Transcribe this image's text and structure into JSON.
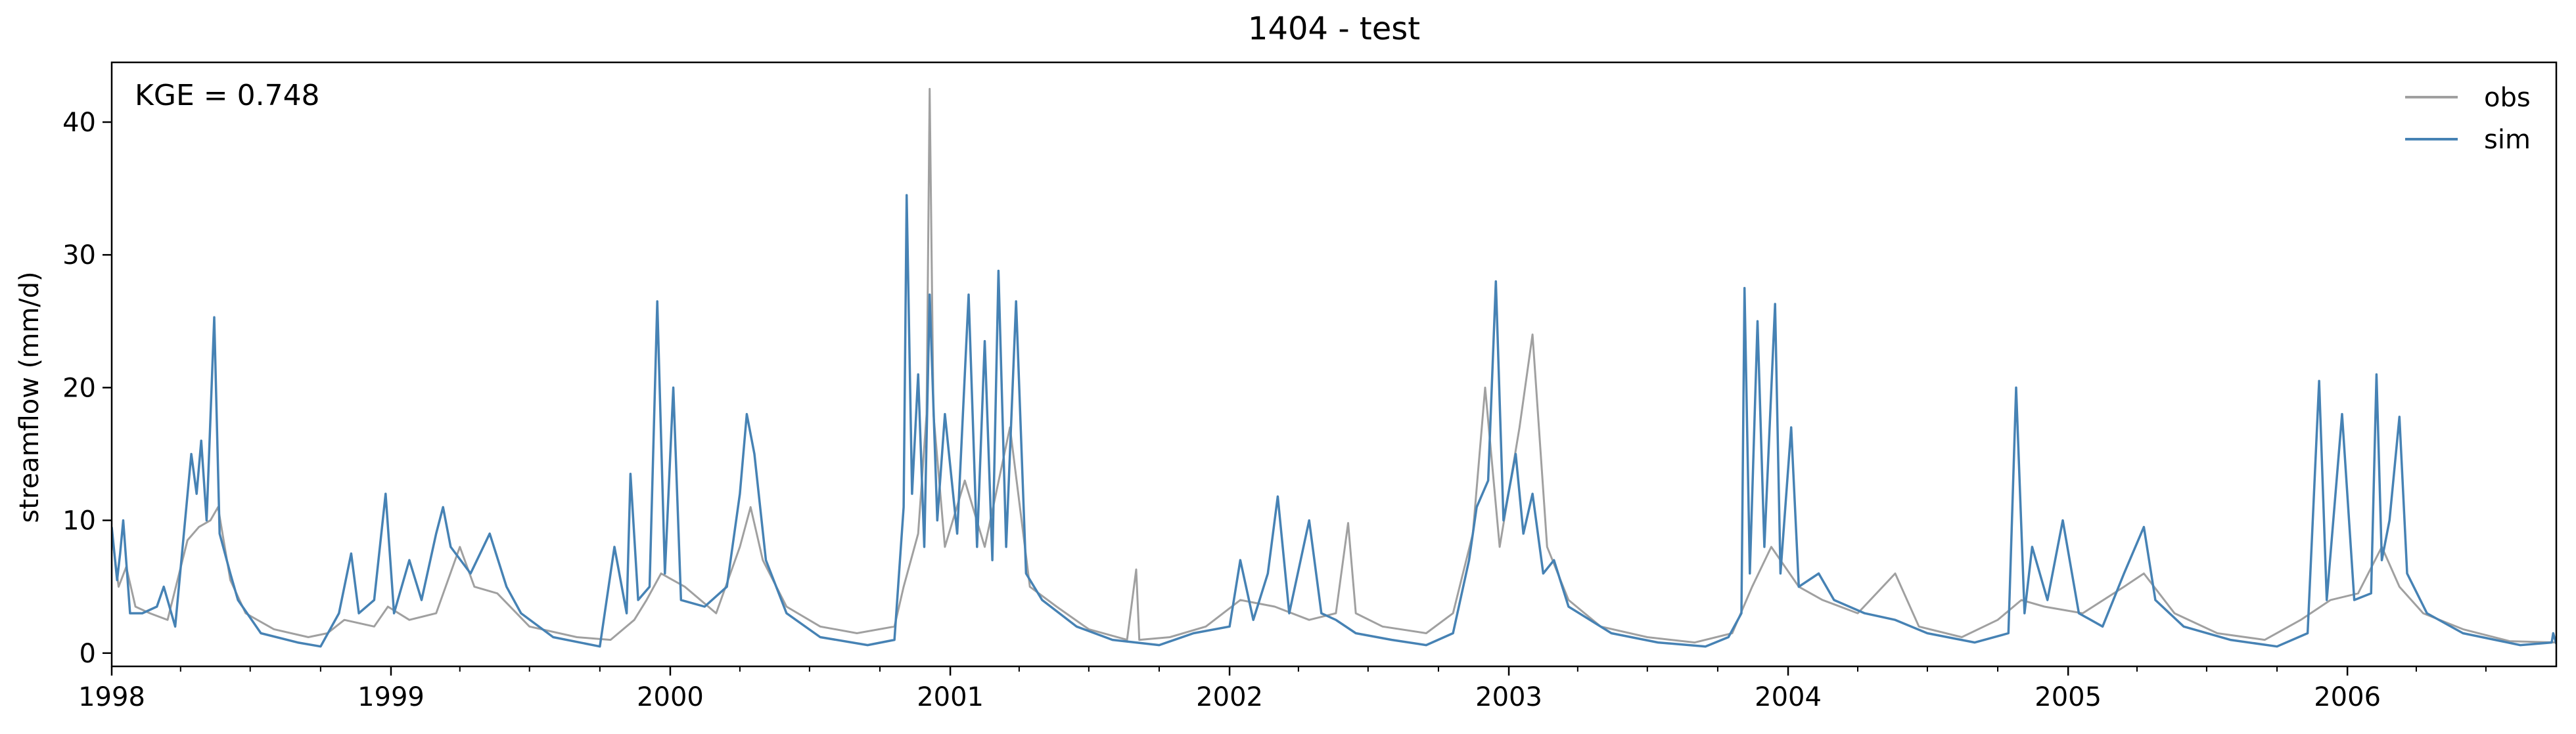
{
  "chart_data": {
    "type": "line",
    "title": "1404 - test",
    "xlabel": "",
    "ylabel": "streamflow (mm/d)",
    "xlim": [
      "1998-01-01",
      "2006-10-01"
    ],
    "ylim": [
      -1,
      44.5
    ],
    "x_ticks": [
      "1998",
      "1999",
      "2000",
      "2001",
      "2002",
      "2003",
      "2004",
      "2005",
      "2006"
    ],
    "x_tick_dates": [
      "1998-01-01",
      "1999-01-01",
      "2000-01-01",
      "2001-01-01",
      "2002-01-01",
      "2003-01-01",
      "2004-01-01",
      "2005-01-01",
      "2006-01-01"
    ],
    "y_ticks": [
      0,
      10,
      20,
      30,
      40
    ],
    "y_tick_labels": [
      "0",
      "10",
      "20",
      "30",
      "40"
    ],
    "annotation": "KGE = 0.748",
    "legend": {
      "position": "top-right",
      "entries": [
        "obs",
        "sim"
      ]
    },
    "grid": false,
    "series": [
      {
        "name": "obs",
        "color": "#a0a0a0",
        "points": [
          [
            "1998-01-01",
            9.0
          ],
          [
            "1998-01-10",
            5.0
          ],
          [
            "1998-01-20",
            6.5
          ],
          [
            "1998-02-01",
            3.5
          ],
          [
            "1998-02-20",
            3.0
          ],
          [
            "1998-03-15",
            2.5
          ],
          [
            "1998-04-10",
            8.5
          ],
          [
            "1998-04-25",
            9.5
          ],
          [
            "1998-05-10",
            10.0
          ],
          [
            "1998-05-20",
            11.0
          ],
          [
            "1998-06-05",
            5.5
          ],
          [
            "1998-06-25",
            3.0
          ],
          [
            "1998-08-01",
            1.8
          ],
          [
            "1998-09-15",
            1.2
          ],
          [
            "1998-10-10",
            1.5
          ],
          [
            "1998-11-01",
            2.5
          ],
          [
            "1998-12-10",
            2.0
          ],
          [
            "1998-12-28",
            3.5
          ],
          [
            "1999-01-25",
            2.5
          ],
          [
            "1999-03-01",
            3.0
          ],
          [
            "1999-04-01",
            8.0
          ],
          [
            "1999-04-20",
            5.0
          ],
          [
            "1999-05-20",
            4.5
          ],
          [
            "1999-07-01",
            2.0
          ],
          [
            "1999-09-01",
            1.2
          ],
          [
            "1999-10-15",
            1.0
          ],
          [
            "1999-11-15",
            2.5
          ],
          [
            "1999-12-01",
            4.0
          ],
          [
            "1999-12-20",
            6.0
          ],
          [
            "2000-01-20",
            5.0
          ],
          [
            "2000-03-01",
            3.0
          ],
          [
            "2000-04-01",
            8.0
          ],
          [
            "2000-04-15",
            11.0
          ],
          [
            "2000-05-01",
            7.0
          ],
          [
            "2000-06-01",
            3.5
          ],
          [
            "2000-07-15",
            2.0
          ],
          [
            "2000-09-01",
            1.5
          ],
          [
            "2000-10-20",
            2.0
          ],
          [
            "2000-11-01",
            5.0
          ],
          [
            "2000-11-20",
            9.0
          ],
          [
            "2000-12-01",
            18.0
          ],
          [
            "2000-12-05",
            42.5
          ],
          [
            "2000-12-10",
            18.0
          ],
          [
            "2000-12-25",
            8.0
          ],
          [
            "2001-01-20",
            13.0
          ],
          [
            "2001-02-15",
            8.0
          ],
          [
            "2001-03-20",
            17.0
          ],
          [
            "2001-04-15",
            5.0
          ],
          [
            "2001-05-20",
            3.5
          ],
          [
            "2001-07-01",
            1.8
          ],
          [
            "2001-08-20",
            1.0
          ],
          [
            "2001-09-01",
            6.3
          ],
          [
            "2001-09-05",
            1.0
          ],
          [
            "2001-10-15",
            1.2
          ],
          [
            "2001-12-01",
            2.0
          ],
          [
            "2002-01-15",
            4.0
          ],
          [
            "2002-03-01",
            3.5
          ],
          [
            "2002-04-15",
            2.5
          ],
          [
            "2002-05-20",
            3.0
          ],
          [
            "2002-06-05",
            9.8
          ],
          [
            "2002-06-15",
            3.0
          ],
          [
            "2002-07-20",
            2.0
          ],
          [
            "2002-09-15",
            1.5
          ],
          [
            "2002-10-20",
            3.0
          ],
          [
            "2002-11-15",
            9.0
          ],
          [
            "2002-12-01",
            20.0
          ],
          [
            "2002-12-20",
            8.0
          ],
          [
            "2003-01-15",
            17.0
          ],
          [
            "2003-02-01",
            24.0
          ],
          [
            "2003-02-20",
            8.0
          ],
          [
            "2003-03-20",
            4.0
          ],
          [
            "2003-05-01",
            2.0
          ],
          [
            "2003-07-01",
            1.2
          ],
          [
            "2003-09-01",
            0.8
          ],
          [
            "2003-10-20",
            1.5
          ],
          [
            "2003-11-15",
            5.0
          ],
          [
            "2003-12-10",
            8.0
          ],
          [
            "2004-01-15",
            5.0
          ],
          [
            "2004-02-15",
            4.0
          ],
          [
            "2004-04-01",
            3.0
          ],
          [
            "2004-05-20",
            6.0
          ],
          [
            "2004-06-20",
            2.0
          ],
          [
            "2004-08-15",
            1.2
          ],
          [
            "2004-10-01",
            2.5
          ],
          [
            "2004-11-01",
            4.0
          ],
          [
            "2004-12-01",
            3.5
          ],
          [
            "2005-01-20",
            3.0
          ],
          [
            "2005-03-15",
            5.0
          ],
          [
            "2005-04-10",
            6.0
          ],
          [
            "2005-05-20",
            3.0
          ],
          [
            "2005-07-15",
            1.5
          ],
          [
            "2005-09-15",
            1.0
          ],
          [
            "2005-11-01",
            2.5
          ],
          [
            "2005-12-10",
            4.0
          ],
          [
            "2006-01-15",
            4.5
          ],
          [
            "2006-02-15",
            8.0
          ],
          [
            "2006-03-10",
            5.0
          ],
          [
            "2006-04-10",
            3.0
          ],
          [
            "2006-06-01",
            1.8
          ],
          [
            "2006-08-01",
            0.9
          ],
          [
            "2006-10-01",
            0.8
          ]
        ]
      },
      {
        "name": "sim",
        "color": "#4682b4",
        "points": [
          [
            "1998-01-01",
            9.5
          ],
          [
            "1998-01-08",
            5.5
          ],
          [
            "1998-01-12",
            7.5
          ],
          [
            "1998-01-16",
            10.0
          ],
          [
            "1998-01-25",
            3.0
          ],
          [
            "1998-02-10",
            3.0
          ],
          [
            "1998-03-01",
            3.5
          ],
          [
            "1998-03-10",
            5.0
          ],
          [
            "1998-03-25",
            2.0
          ],
          [
            "1998-04-15",
            15.0
          ],
          [
            "1998-04-22",
            12.0
          ],
          [
            "1998-04-28",
            16.0
          ],
          [
            "1998-05-05",
            10.0
          ],
          [
            "1998-05-15",
            25.3
          ],
          [
            "1998-05-22",
            9.0
          ],
          [
            "1998-06-05",
            6.0
          ],
          [
            "1998-06-15",
            4.0
          ],
          [
            "1998-07-15",
            1.5
          ],
          [
            "1998-09-01",
            0.8
          ],
          [
            "1998-10-01",
            0.5
          ],
          [
            "1998-10-25",
            3.0
          ],
          [
            "1998-11-10",
            7.5
          ],
          [
            "1998-11-20",
            3.0
          ],
          [
            "1998-12-10",
            4.0
          ],
          [
            "1998-12-25",
            12.0
          ],
          [
            "1999-01-05",
            3.0
          ],
          [
            "1999-01-25",
            7.0
          ],
          [
            "1999-02-10",
            4.0
          ],
          [
            "1999-03-01",
            9.0
          ],
          [
            "1999-03-10",
            11.0
          ],
          [
            "1999-03-20",
            8.0
          ],
          [
            "1999-04-15",
            6.0
          ],
          [
            "1999-05-10",
            9.0
          ],
          [
            "1999-06-01",
            5.0
          ],
          [
            "1999-06-20",
            3.0
          ],
          [
            "1999-08-01",
            1.2
          ],
          [
            "1999-10-01",
            0.5
          ],
          [
            "1999-10-20",
            8.0
          ],
          [
            "1999-11-05",
            3.0
          ],
          [
            "1999-11-10",
            13.5
          ],
          [
            "1999-11-20",
            4.0
          ],
          [
            "1999-12-05",
            5.0
          ],
          [
            "1999-12-15",
            26.5
          ],
          [
            "1999-12-25",
            6.0
          ],
          [
            "2000-01-05",
            20.0
          ],
          [
            "2000-01-15",
            4.0
          ],
          [
            "2000-02-15",
            3.5
          ],
          [
            "2000-03-15",
            5.0
          ],
          [
            "2000-04-01",
            12.0
          ],
          [
            "2000-04-10",
            18.0
          ],
          [
            "2000-04-20",
            15.0
          ],
          [
            "2000-05-05",
            7.0
          ],
          [
            "2000-06-01",
            3.0
          ],
          [
            "2000-07-15",
            1.2
          ],
          [
            "2000-09-15",
            0.6
          ],
          [
            "2000-10-20",
            1.0
          ],
          [
            "2000-11-01",
            11.0
          ],
          [
            "2000-11-05",
            34.5
          ],
          [
            "2000-11-12",
            12.0
          ],
          [
            "2000-11-20",
            21.0
          ],
          [
            "2000-11-28",
            8.0
          ],
          [
            "2000-12-05",
            27.0
          ],
          [
            "2000-12-15",
            10.0
          ],
          [
            "2000-12-25",
            18.0
          ],
          [
            "2001-01-10",
            9.0
          ],
          [
            "2001-01-25",
            27.0
          ],
          [
            "2001-02-05",
            8.0
          ],
          [
            "2001-02-15",
            23.5
          ],
          [
            "2001-02-25",
            7.0
          ],
          [
            "2001-03-05",
            28.8
          ],
          [
            "2001-03-15",
            8.0
          ],
          [
            "2001-03-28",
            26.5
          ],
          [
            "2001-04-10",
            6.0
          ],
          [
            "2001-05-01",
            4.0
          ],
          [
            "2001-06-15",
            2.0
          ],
          [
            "2001-08-01",
            1.0
          ],
          [
            "2001-10-01",
            0.6
          ],
          [
            "2001-11-15",
            1.5
          ],
          [
            "2002-01-01",
            2.0
          ],
          [
            "2002-01-15",
            7.0
          ],
          [
            "2002-02-01",
            2.5
          ],
          [
            "2002-02-20",
            6.0
          ],
          [
            "2002-03-05",
            11.8
          ],
          [
            "2002-03-20",
            3.0
          ],
          [
            "2002-04-15",
            10.0
          ],
          [
            "2002-05-01",
            3.0
          ],
          [
            "2002-05-20",
            2.5
          ],
          [
            "2002-06-15",
            1.5
          ],
          [
            "2002-08-01",
            1.0
          ],
          [
            "2002-09-15",
            0.6
          ],
          [
            "2002-10-20",
            1.5
          ],
          [
            "2002-11-10",
            7.0
          ],
          [
            "2002-11-20",
            11.0
          ],
          [
            "2002-12-05",
            13.0
          ],
          [
            "2002-12-15",
            28.0
          ],
          [
            "2002-12-25",
            10.0
          ],
          [
            "2003-01-10",
            15.0
          ],
          [
            "2003-01-20",
            9.0
          ],
          [
            "2003-02-01",
            12.0
          ],
          [
            "2003-02-15",
            6.0
          ],
          [
            "2003-03-01",
            7.0
          ],
          [
            "2003-03-20",
            3.5
          ],
          [
            "2003-05-15",
            1.5
          ],
          [
            "2003-07-15",
            0.8
          ],
          [
            "2003-09-15",
            0.5
          ],
          [
            "2003-10-15",
            1.2
          ],
          [
            "2003-11-01",
            3.0
          ],
          [
            "2003-11-05",
            27.5
          ],
          [
            "2003-11-12",
            6.0
          ],
          [
            "2003-11-22",
            25.0
          ],
          [
            "2003-12-01",
            8.0
          ],
          [
            "2003-12-15",
            26.3
          ],
          [
            "2003-12-22",
            6.0
          ],
          [
            "2004-01-05",
            17.0
          ],
          [
            "2004-01-15",
            5.0
          ],
          [
            "2004-02-10",
            6.0
          ],
          [
            "2004-03-01",
            4.0
          ],
          [
            "2004-04-10",
            3.0
          ],
          [
            "2004-05-20",
            2.5
          ],
          [
            "2004-07-01",
            1.5
          ],
          [
            "2004-09-01",
            0.8
          ],
          [
            "2004-10-15",
            1.5
          ],
          [
            "2004-10-25",
            20.0
          ],
          [
            "2004-11-05",
            3.0
          ],
          [
            "2004-11-15",
            8.0
          ],
          [
            "2004-12-05",
            4.0
          ],
          [
            "2004-12-25",
            10.0
          ],
          [
            "2005-01-15",
            3.0
          ],
          [
            "2005-02-15",
            2.0
          ],
          [
            "2005-03-15",
            6.0
          ],
          [
            "2005-04-10",
            9.5
          ],
          [
            "2005-04-25",
            4.0
          ],
          [
            "2005-06-01",
            2.0
          ],
          [
            "2005-08-01",
            1.0
          ],
          [
            "2005-10-01",
            0.5
          ],
          [
            "2005-11-10",
            1.5
          ],
          [
            "2005-11-25",
            20.5
          ],
          [
            "2005-12-05",
            4.0
          ],
          [
            "2005-12-25",
            18.0
          ],
          [
            "2006-01-10",
            4.0
          ],
          [
            "2006-02-01",
            4.5
          ],
          [
            "2006-02-08",
            21.0
          ],
          [
            "2006-02-15",
            7.0
          ],
          [
            "2006-02-25",
            10.0
          ],
          [
            "2006-03-10",
            17.8
          ],
          [
            "2006-03-20",
            6.0
          ],
          [
            "2006-04-15",
            3.0
          ],
          [
            "2006-06-01",
            1.5
          ],
          [
            "2006-08-15",
            0.6
          ],
          [
            "2006-09-25",
            0.8
          ],
          [
            "2006-09-27",
            1.5
          ],
          [
            "2006-10-01",
            0.7
          ]
        ]
      }
    ]
  }
}
